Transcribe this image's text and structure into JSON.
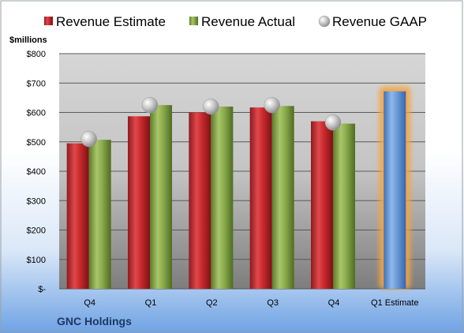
{
  "chart_data": {
    "type": "bar",
    "title": "",
    "ylabel": "$millions",
    "xlabel": "",
    "footer": "GNC Holdings",
    "categories": [
      "Q4",
      "Q1",
      "Q2",
      "Q3",
      "Q4",
      "Q1 Estimate"
    ],
    "ylim": [
      0,
      800
    ],
    "y_ticks": [
      {
        "value": 0,
        "label": "$-"
      },
      {
        "value": 100,
        "label": "$100"
      },
      {
        "value": 200,
        "label": "$200"
      },
      {
        "value": 300,
        "label": "$300"
      },
      {
        "value": 400,
        "label": "$400"
      },
      {
        "value": 500,
        "label": "$500"
      },
      {
        "value": 600,
        "label": "$600"
      },
      {
        "value": 700,
        "label": "$700"
      },
      {
        "value": 800,
        "label": "$800"
      }
    ],
    "grid": true,
    "legend_position": "top",
    "series": [
      {
        "name": "Revenue Estimate",
        "kind": "bar",
        "color": "#c0282d",
        "values": [
          495,
          587,
          600,
          617,
          570,
          null
        ]
      },
      {
        "name": "Revenue Actual",
        "kind": "bar",
        "color": "#86a847",
        "values": [
          507,
          625,
          620,
          622,
          562,
          null
        ]
      },
      {
        "name": "Revenue GAAP",
        "kind": "marker",
        "color": "#b8b8b8",
        "values": [
          510,
          625,
          620,
          625,
          566,
          null
        ]
      }
    ],
    "forecast": {
      "category_index": 5,
      "value": 672,
      "color": "#6a9ad8",
      "glow": "#f5a540"
    }
  }
}
